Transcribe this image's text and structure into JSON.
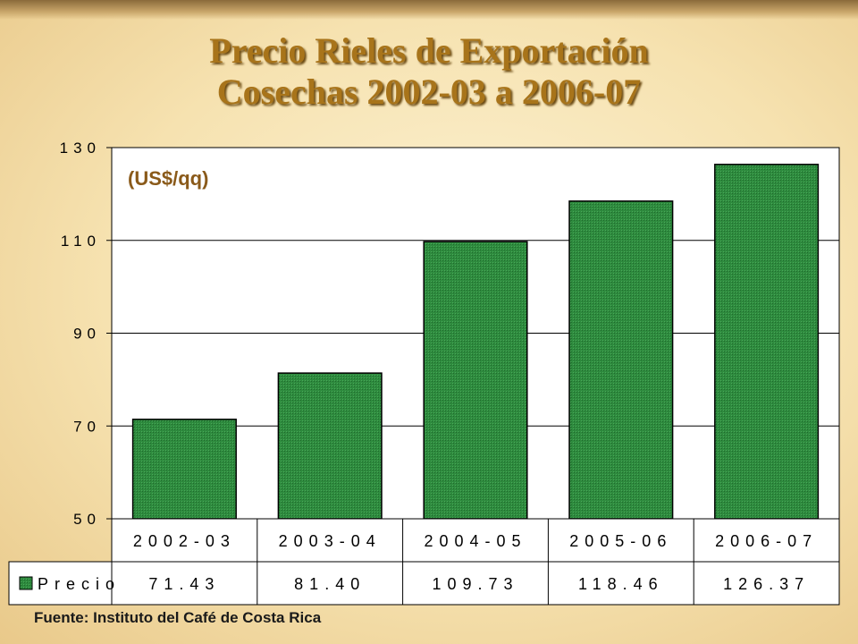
{
  "page": {
    "title_line1": "Precio Rieles de Exportación",
    "title_line2": "Cosechas 2002-03 a 2006-07",
    "source": "Fuente: Instituto del Café de Costa Rica"
  },
  "chart_data": {
    "type": "bar",
    "title": "Precio Rieles de Exportación Cosechas 2002-03 a 2006-07",
    "ylabel": "(US$/qq)",
    "categories": [
      "2002-03",
      "2003-04",
      "2004-05",
      "2005-06",
      "2006-07"
    ],
    "series": [
      {
        "name": "Precio",
        "values": [
          71.43,
          81.4,
          109.73,
          118.46,
          126.37
        ],
        "value_labels": [
          "71.43",
          "81.40",
          "109.73",
          "118.46",
          "126.37"
        ]
      }
    ],
    "ylim": [
      50,
      130
    ],
    "yticks": [
      50,
      70,
      90,
      110,
      130
    ],
    "grid": true,
    "legend": "data-table-left",
    "colors": {
      "bar": "#2e8b3e",
      "bar_dark": "#1f6a2c",
      "plot_bg": "#ffffff",
      "grid": "#000000"
    }
  }
}
